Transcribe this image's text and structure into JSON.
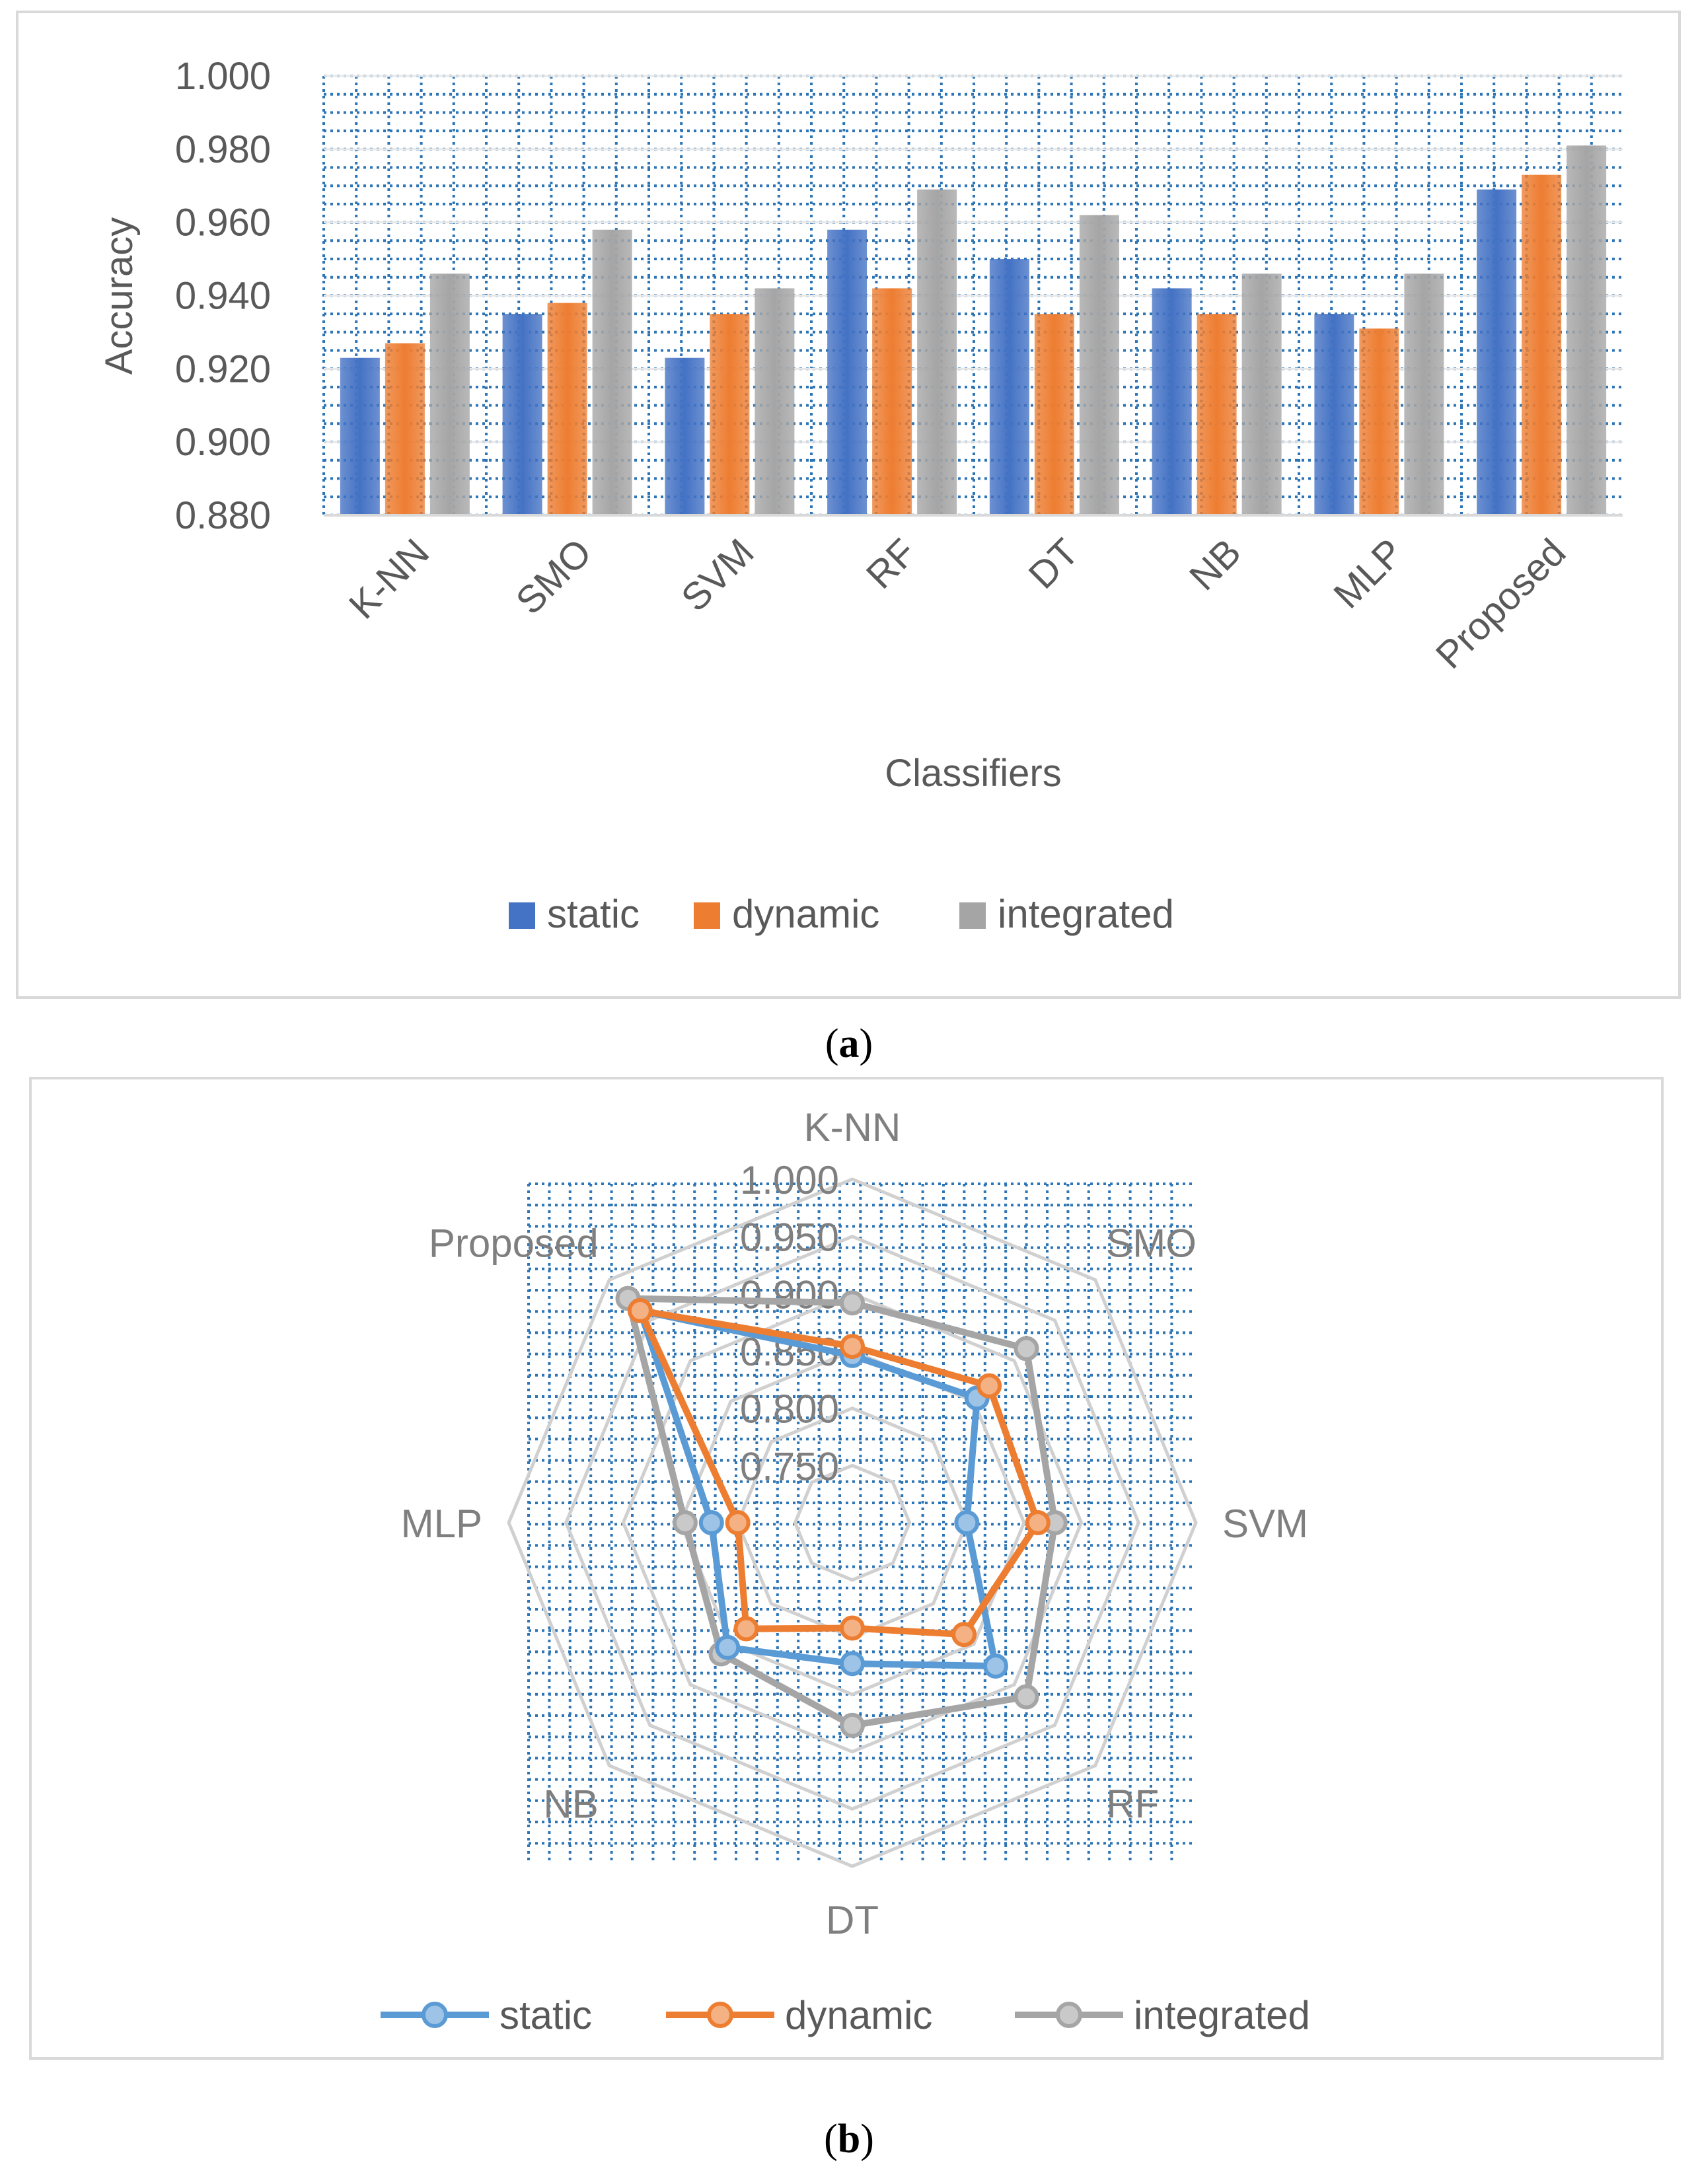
{
  "colors": {
    "static": "#4472C4",
    "dynamic": "#ED7D31",
    "integrated": "#A5A5A5",
    "radar_static": "#5B9BD5",
    "grid_blue": "#2E75B6",
    "frame": "#D9D9D9",
    "text": "#595959"
  },
  "chart_data": [
    {
      "type": "bar",
      "panel_label": "(a)",
      "caption_letter": "a",
      "xlabel": "Classifiers",
      "ylabel": "Accuracy",
      "ylim": [
        0.88,
        1.0
      ],
      "yticks": [
        "0.880",
        "0.900",
        "0.920",
        "0.940",
        "0.960",
        "0.980",
        "1.000"
      ],
      "categories": [
        "K-NN",
        "SMO",
        "SVM",
        "RF",
        "DT",
        "NB",
        "MLP",
        "Proposed"
      ],
      "series": [
        {
          "name": "static",
          "values": [
            0.923,
            0.935,
            0.923,
            0.958,
            0.95,
            0.942,
            0.935,
            0.969
          ]
        },
        {
          "name": "dynamic",
          "values": [
            0.927,
            0.938,
            0.935,
            0.942,
            0.935,
            0.935,
            0.931,
            0.973
          ]
        },
        {
          "name": "integrated",
          "values": [
            0.946,
            0.958,
            0.942,
            0.969,
            0.962,
            0.946,
            0.946,
            0.981
          ]
        }
      ],
      "legend": "bottom"
    },
    {
      "type": "radar",
      "panel_label": "(b)",
      "caption_letter": "b",
      "rlim": [
        0.7,
        1.0
      ],
      "rticks": [
        "0.750",
        "0.800",
        "0.850",
        "0.900",
        "0.950",
        "1.000"
      ],
      "categories": [
        "K-NN",
        "SMO",
        "SVM",
        "RF",
        "DT",
        "NB",
        "MLP",
        "Proposed"
      ],
      "series": [
        {
          "name": "static",
          "values": [
            0.846,
            0.854,
            0.8,
            0.877,
            0.823,
            0.854,
            0.823,
            0.962
          ]
        },
        {
          "name": "dynamic",
          "values": [
            0.854,
            0.869,
            0.862,
            0.838,
            0.792,
            0.831,
            0.8,
            0.962
          ]
        },
        {
          "name": "integrated",
          "values": [
            0.892,
            0.915,
            0.877,
            0.915,
            0.877,
            0.862,
            0.846,
            0.977
          ]
        }
      ],
      "legend": "bottom"
    }
  ]
}
